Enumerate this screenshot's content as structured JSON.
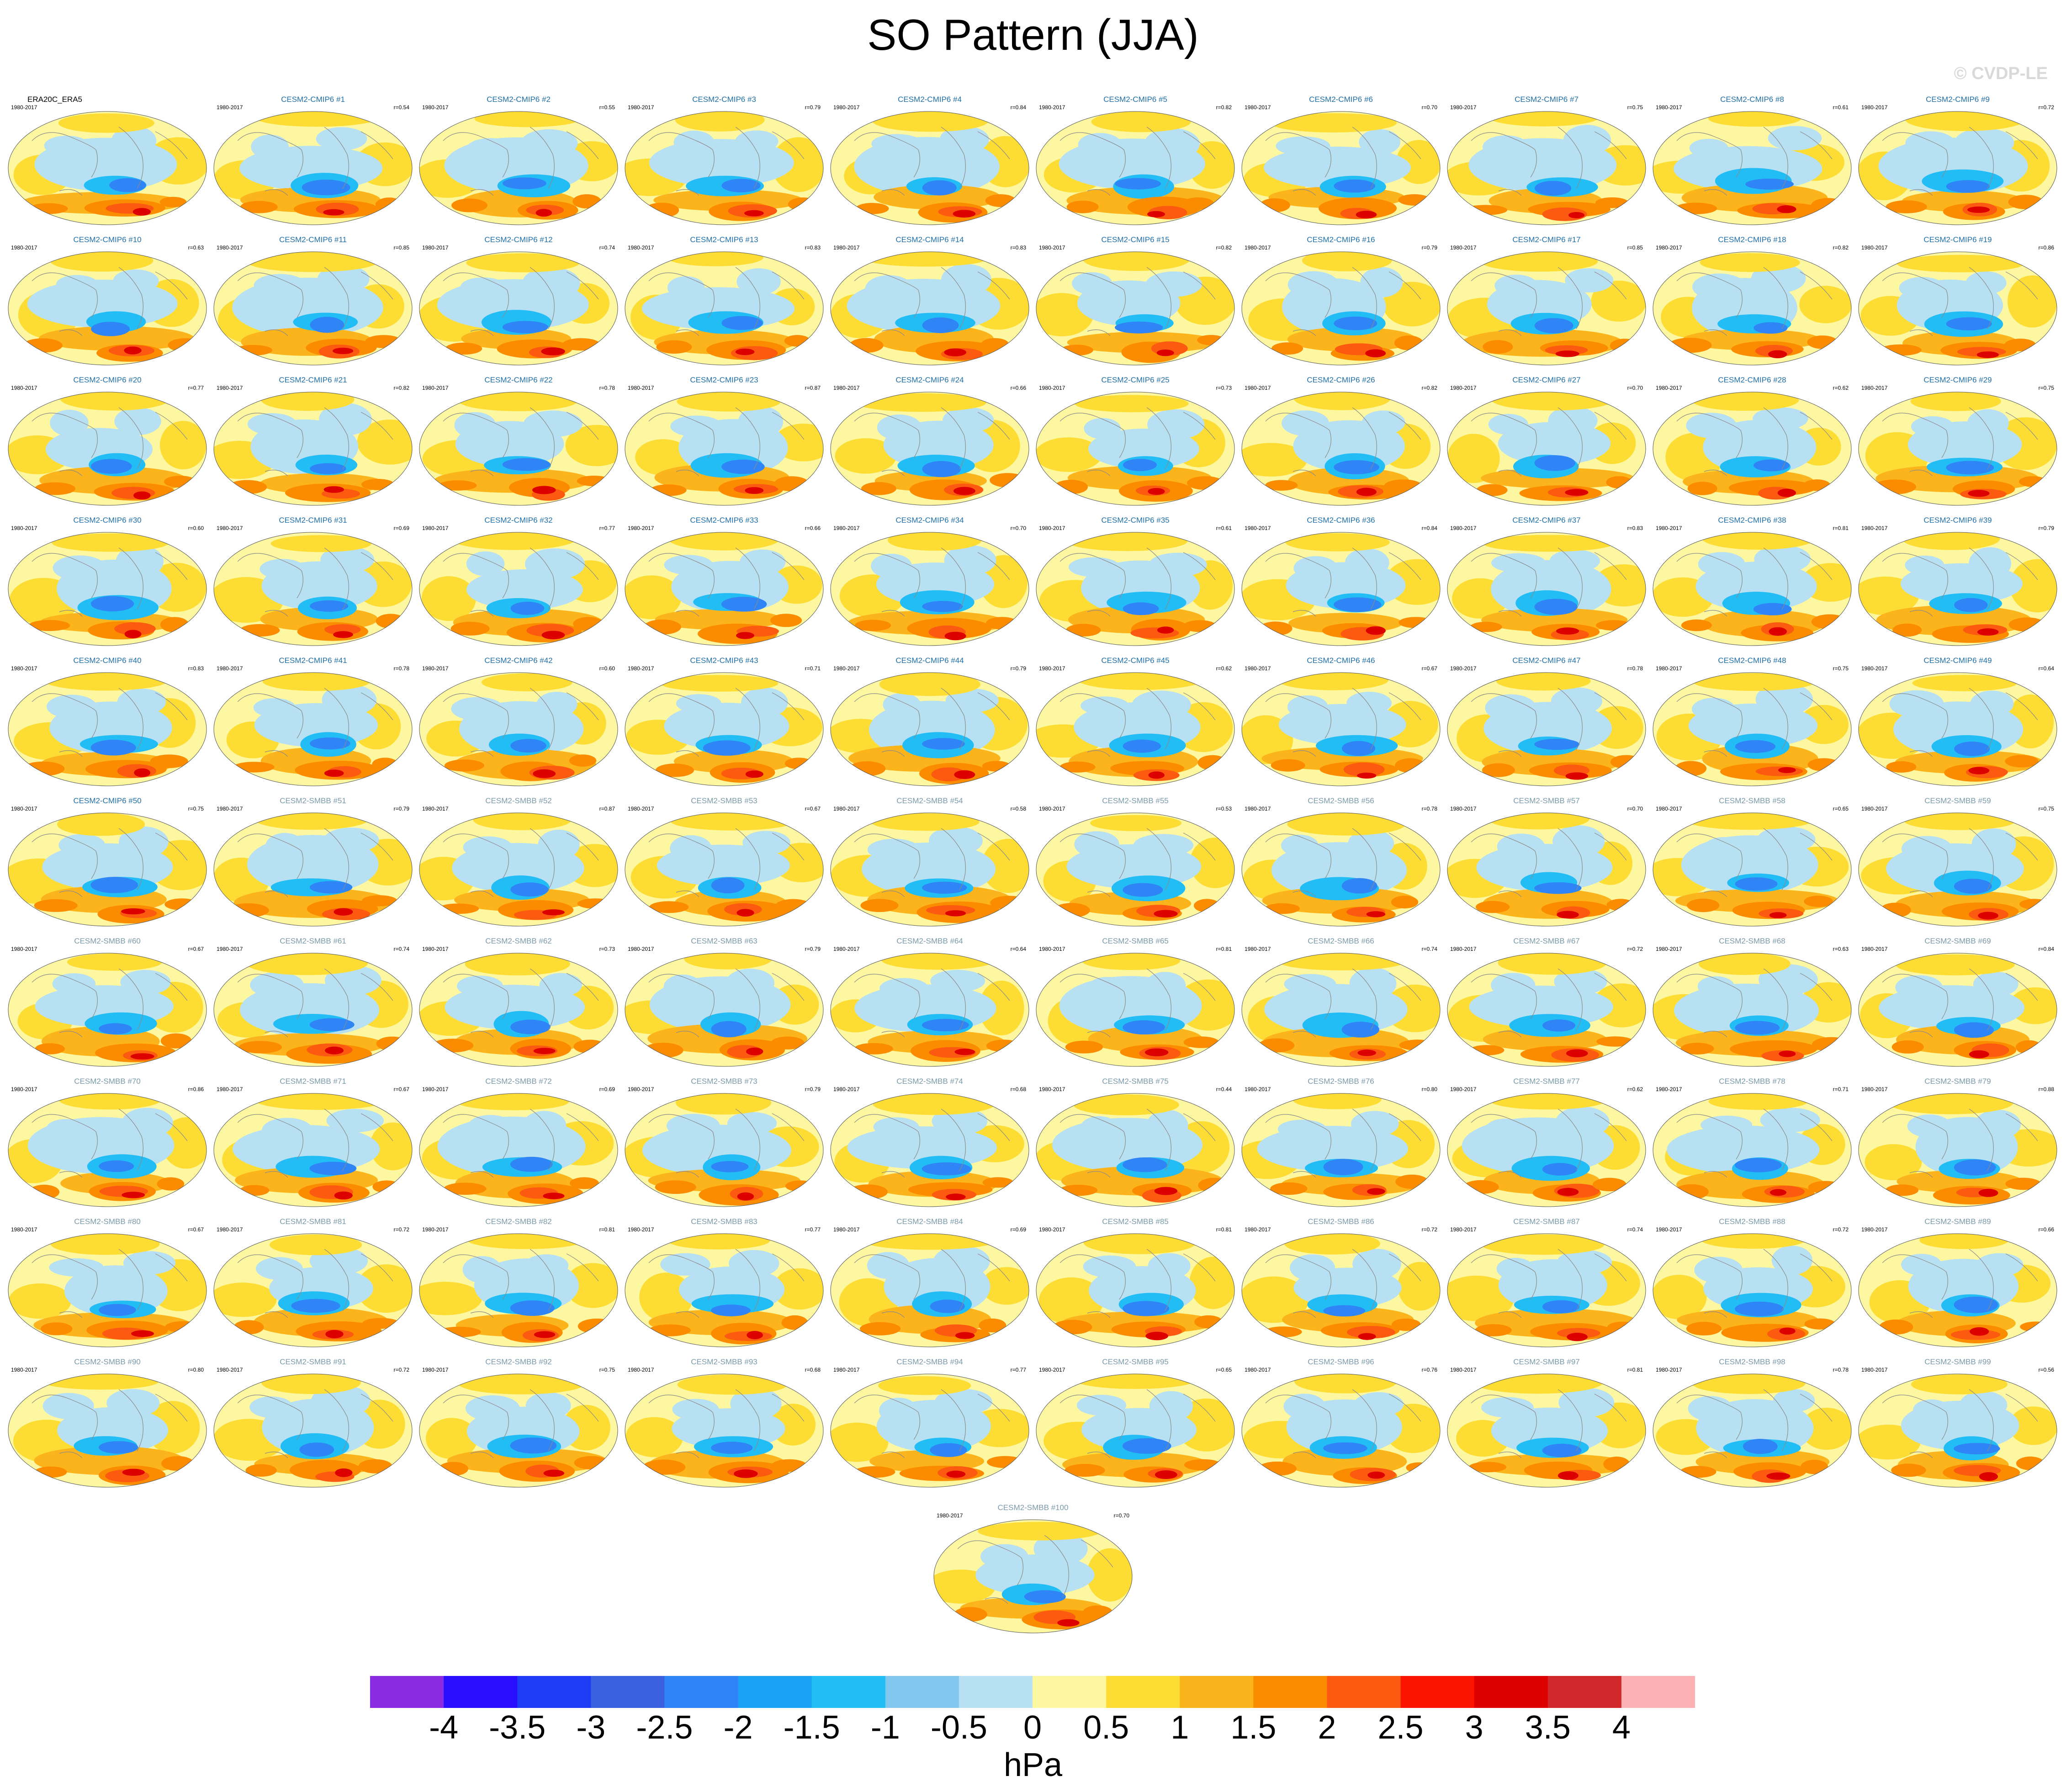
{
  "title": "SO Pattern (JJA)",
  "watermark": "© CVDP-LE",
  "chart_data": {
    "type": "heatmap",
    "title": "SO Pattern (JJA)",
    "period": "1980-2017",
    "colorbar": {
      "units": "hPa",
      "levels": [
        "-4",
        "-3.5",
        "-3",
        "-2.5",
        "-2",
        "-1.5",
        "-1",
        "-0.5",
        "0",
        "0.5",
        "1",
        "1.5",
        "2",
        "2.5",
        "3",
        "3.5",
        "4"
      ],
      "colors": [
        "#8a2be2",
        "#2a0fff",
        "#1f3bf5",
        "#3a62e0",
        "#2f85f5",
        "#1aa3f5",
        "#23bdf5",
        "#82c7ee",
        "#b7e0f2",
        "#fcf7a0",
        "#fddd33",
        "#fbb41c",
        "#fb8c00",
        "#fb5a10",
        "#fb1500",
        "#dd0000",
        "#d0282a",
        "#fcb1b4"
      ]
    },
    "panels": [
      {
        "label": "ERA20C_ERA5",
        "years": "1980-2017",
        "r": ""
      },
      {
        "label": "CESM2-CMIP6 #1",
        "years": "1980-2017",
        "r": "r=0.54"
      },
      {
        "label": "CESM2-CMIP6 #2",
        "years": "1980-2017",
        "r": "r=0.55"
      },
      {
        "label": "CESM2-CMIP6 #3",
        "years": "1980-2017",
        "r": "r=0.79"
      },
      {
        "label": "CESM2-CMIP6 #4",
        "years": "1980-2017",
        "r": "r=0.84"
      },
      {
        "label": "CESM2-CMIP6 #5",
        "years": "1980-2017",
        "r": "r=0.82"
      },
      {
        "label": "CESM2-CMIP6 #6",
        "years": "1980-2017",
        "r": "r=0.70"
      },
      {
        "label": "CESM2-CMIP6 #7",
        "years": "1980-2017",
        "r": "r=0.75"
      },
      {
        "label": "CESM2-CMIP6 #8",
        "years": "1980-2017",
        "r": "r=0.61"
      },
      {
        "label": "CESM2-CMIP6 #9",
        "years": "1980-2017",
        "r": "r=0.72"
      },
      {
        "label": "CESM2-CMIP6 #10",
        "years": "1980-2017",
        "r": "r=0.63"
      },
      {
        "label": "CESM2-CMIP6 #11",
        "years": "1980-2017",
        "r": "r=0.85"
      },
      {
        "label": "CESM2-CMIP6 #12",
        "years": "1980-2017",
        "r": "r=0.74"
      },
      {
        "label": "CESM2-CMIP6 #13",
        "years": "1980-2017",
        "r": "r=0.83"
      },
      {
        "label": "CESM2-CMIP6 #14",
        "years": "1980-2017",
        "r": "r=0.83"
      },
      {
        "label": "CESM2-CMIP6 #15",
        "years": "1980-2017",
        "r": "r=0.82"
      },
      {
        "label": "CESM2-CMIP6 #16",
        "years": "1980-2017",
        "r": "r=0.79"
      },
      {
        "label": "CESM2-CMIP6 #17",
        "years": "1980-2017",
        "r": "r=0.85"
      },
      {
        "label": "CESM2-CMIP6 #18",
        "years": "1980-2017",
        "r": "r=0.82"
      },
      {
        "label": "CESM2-CMIP6 #19",
        "years": "1980-2017",
        "r": "r=0.86"
      },
      {
        "label": "CESM2-CMIP6 #20",
        "years": "1980-2017",
        "r": "r=0.77"
      },
      {
        "label": "CESM2-CMIP6 #21",
        "years": "1980-2017",
        "r": "r=0.82"
      },
      {
        "label": "CESM2-CMIP6 #22",
        "years": "1980-2017",
        "r": "r=0.78"
      },
      {
        "label": "CESM2-CMIP6 #23",
        "years": "1980-2017",
        "r": "r=0.87"
      },
      {
        "label": "CESM2-CMIP6 #24",
        "years": "1980-2017",
        "r": "r=0.66"
      },
      {
        "label": "CESM2-CMIP6 #25",
        "years": "1980-2017",
        "r": "r=0.73"
      },
      {
        "label": "CESM2-CMIP6 #26",
        "years": "1980-2017",
        "r": "r=0.82"
      },
      {
        "label": "CESM2-CMIP6 #27",
        "years": "1980-2017",
        "r": "r=0.70"
      },
      {
        "label": "CESM2-CMIP6 #28",
        "years": "1980-2017",
        "r": "r=0.62"
      },
      {
        "label": "CESM2-CMIP6 #29",
        "years": "1980-2017",
        "r": "r=0.75"
      },
      {
        "label": "CESM2-CMIP6 #30",
        "years": "1980-2017",
        "r": "r=0.60"
      },
      {
        "label": "CESM2-CMIP6 #31",
        "years": "1980-2017",
        "r": "r=0.69"
      },
      {
        "label": "CESM2-CMIP6 #32",
        "years": "1980-2017",
        "r": "r=0.77"
      },
      {
        "label": "CESM2-CMIP6 #33",
        "years": "1980-2017",
        "r": "r=0.66"
      },
      {
        "label": "CESM2-CMIP6 #34",
        "years": "1980-2017",
        "r": "r=0.70"
      },
      {
        "label": "CESM2-CMIP6 #35",
        "years": "1980-2017",
        "r": "r=0.61"
      },
      {
        "label": "CESM2-CMIP6 #36",
        "years": "1980-2017",
        "r": "r=0.84"
      },
      {
        "label": "CESM2-CMIP6 #37",
        "years": "1980-2017",
        "r": "r=0.83"
      },
      {
        "label": "CESM2-CMIP6 #38",
        "years": "1980-2017",
        "r": "r=0.81"
      },
      {
        "label": "CESM2-CMIP6 #39",
        "years": "1980-2017",
        "r": "r=0.79"
      },
      {
        "label": "CESM2-CMIP6 #40",
        "years": "1980-2017",
        "r": "r=0.83"
      },
      {
        "label": "CESM2-CMIP6 #41",
        "years": "1980-2017",
        "r": "r=0.78"
      },
      {
        "label": "CESM2-CMIP6 #42",
        "years": "1980-2017",
        "r": "r=0.60"
      },
      {
        "label": "CESM2-CMIP6 #43",
        "years": "1980-2017",
        "r": "r=0.71"
      },
      {
        "label": "CESM2-CMIP6 #44",
        "years": "1980-2017",
        "r": "r=0.79"
      },
      {
        "label": "CESM2-CMIP6 #45",
        "years": "1980-2017",
        "r": "r=0.62"
      },
      {
        "label": "CESM2-CMIP6 #46",
        "years": "1980-2017",
        "r": "r=0.67"
      },
      {
        "label": "CESM2-CMIP6 #47",
        "years": "1980-2017",
        "r": "r=0.78"
      },
      {
        "label": "CESM2-CMIP6 #48",
        "years": "1980-2017",
        "r": "r=0.75"
      },
      {
        "label": "CESM2-CMIP6 #49",
        "years": "1980-2017",
        "r": "r=0.64"
      },
      {
        "label": "CESM2-CMIP6 #50",
        "years": "1980-2017",
        "r": "r=0.75"
      },
      {
        "label": "CESM2-SMBB #51",
        "years": "1980-2017",
        "r": "r=0.79"
      },
      {
        "label": "CESM2-SMBB #52",
        "years": "1980-2017",
        "r": "r=0.87"
      },
      {
        "label": "CESM2-SMBB #53",
        "years": "1980-2017",
        "r": "r=0.67"
      },
      {
        "label": "CESM2-SMBB #54",
        "years": "1980-2017",
        "r": "r=0.58"
      },
      {
        "label": "CESM2-SMBB #55",
        "years": "1980-2017",
        "r": "r=0.53"
      },
      {
        "label": "CESM2-SMBB #56",
        "years": "1980-2017",
        "r": "r=0.78"
      },
      {
        "label": "CESM2-SMBB #57",
        "years": "1980-2017",
        "r": "r=0.70"
      },
      {
        "label": "CESM2-SMBB #58",
        "years": "1980-2017",
        "r": "r=0.65"
      },
      {
        "label": "CESM2-SMBB #59",
        "years": "1980-2017",
        "r": "r=0.75"
      },
      {
        "label": "CESM2-SMBB #60",
        "years": "1980-2017",
        "r": "r=0.67"
      },
      {
        "label": "CESM2-SMBB #61",
        "years": "1980-2017",
        "r": "r=0.74"
      },
      {
        "label": "CESM2-SMBB #62",
        "years": "1980-2017",
        "r": "r=0.73"
      },
      {
        "label": "CESM2-SMBB #63",
        "years": "1980-2017",
        "r": "r=0.79"
      },
      {
        "label": "CESM2-SMBB #64",
        "years": "1980-2017",
        "r": "r=0.64"
      },
      {
        "label": "CESM2-SMBB #65",
        "years": "1980-2017",
        "r": "r=0.81"
      },
      {
        "label": "CESM2-SMBB #66",
        "years": "1980-2017",
        "r": "r=0.74"
      },
      {
        "label": "CESM2-SMBB #67",
        "years": "1980-2017",
        "r": "r=0.72"
      },
      {
        "label": "CESM2-SMBB #68",
        "years": "1980-2017",
        "r": "r=0.63"
      },
      {
        "label": "CESM2-SMBB #69",
        "years": "1980-2017",
        "r": "r=0.84"
      },
      {
        "label": "CESM2-SMBB #70",
        "years": "1980-2017",
        "r": "r=0.86"
      },
      {
        "label": "CESM2-SMBB #71",
        "years": "1980-2017",
        "r": "r=0.67"
      },
      {
        "label": "CESM2-SMBB #72",
        "years": "1980-2017",
        "r": "r=0.69"
      },
      {
        "label": "CESM2-SMBB #73",
        "years": "1980-2017",
        "r": "r=0.79"
      },
      {
        "label": "CESM2-SMBB #74",
        "years": "1980-2017",
        "r": "r=0.68"
      },
      {
        "label": "CESM2-SMBB #75",
        "years": "1980-2017",
        "r": "r=0.44"
      },
      {
        "label": "CESM2-SMBB #76",
        "years": "1980-2017",
        "r": "r=0.80"
      },
      {
        "label": "CESM2-SMBB #77",
        "years": "1980-2017",
        "r": "r=0.62"
      },
      {
        "label": "CESM2-SMBB #78",
        "years": "1980-2017",
        "r": "r=0.71"
      },
      {
        "label": "CESM2-SMBB #79",
        "years": "1980-2017",
        "r": "r=0.88"
      },
      {
        "label": "CESM2-SMBB #80",
        "years": "1980-2017",
        "r": "r=0.67"
      },
      {
        "label": "CESM2-SMBB #81",
        "years": "1980-2017",
        "r": "r=0.72"
      },
      {
        "label": "CESM2-SMBB #82",
        "years": "1980-2017",
        "r": "r=0.81"
      },
      {
        "label": "CESM2-SMBB #83",
        "years": "1980-2017",
        "r": "r=0.77"
      },
      {
        "label": "CESM2-SMBB #84",
        "years": "1980-2017",
        "r": "r=0.69"
      },
      {
        "label": "CESM2-SMBB #85",
        "years": "1980-2017",
        "r": "r=0.81"
      },
      {
        "label": "CESM2-SMBB #86",
        "years": "1980-2017",
        "r": "r=0.72"
      },
      {
        "label": "CESM2-SMBB #87",
        "years": "1980-2017",
        "r": "r=0.74"
      },
      {
        "label": "CESM2-SMBB #88",
        "years": "1980-2017",
        "r": "r=0.72"
      },
      {
        "label": "CESM2-SMBB #89",
        "years": "1980-2017",
        "r": "r=0.66"
      },
      {
        "label": "CESM2-SMBB #90",
        "years": "1980-2017",
        "r": "r=0.80"
      },
      {
        "label": "CESM2-SMBB #91",
        "years": "1980-2017",
        "r": "r=0.72"
      },
      {
        "label": "CESM2-SMBB #92",
        "years": "1980-2017",
        "r": "r=0.75"
      },
      {
        "label": "CESM2-SMBB #93",
        "years": "1980-2017",
        "r": "r=0.68"
      },
      {
        "label": "CESM2-SMBB #94",
        "years": "1980-2017",
        "r": "r=0.77"
      },
      {
        "label": "CESM2-SMBB #95",
        "years": "1980-2017",
        "r": "r=0.65"
      },
      {
        "label": "CESM2-SMBB #96",
        "years": "1980-2017",
        "r": "r=0.76"
      },
      {
        "label": "CESM2-SMBB #97",
        "years": "1980-2017",
        "r": "r=0.81"
      },
      {
        "label": "CESM2-SMBB #98",
        "years": "1980-2017",
        "r": "r=0.78"
      },
      {
        "label": "CESM2-SMBB #99",
        "years": "1980-2017",
        "r": "r=0.56"
      },
      {
        "label": "CESM2-SMBB #100",
        "years": "1980-2017",
        "r": "r=0.70"
      }
    ]
  }
}
